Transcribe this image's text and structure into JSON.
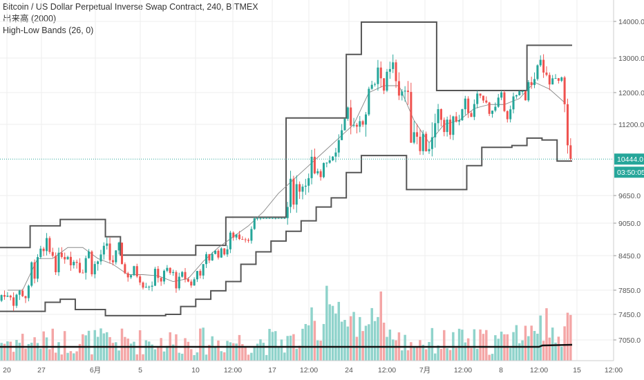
{
  "legend": {
    "symbol": "Bitcoin / US Dollar Perpetual Inverse Swap Contract, 240, BITMEX",
    "volume": "出来高 (2000)",
    "bands": "High-Low Bands (26, 0)"
  },
  "price_tag": {
    "value": "10444.0",
    "countdown": "03:50:05",
    "color": "#26a69a"
  },
  "colors": {
    "up": "#26a69a",
    "down": "#ef5350",
    "vol_up": "#8fd3cb",
    "vol_down": "#f4a6a6",
    "band": "#555555",
    "mid": "#888888",
    "grid": "#eeeeee"
  },
  "chart_data": {
    "type": "candlestick",
    "title": "Bitcoin / US Dollar Perpetual Inverse Swap Contract, 240, BITMEX",
    "y_ticks": [
      "14000.0",
      "13000.0",
      "12000.0",
      "11200.0",
      "9650.0",
      "9050.0",
      "8450.0",
      "7850.0",
      "7450.0",
      "7050.0"
    ],
    "y_tick_values": [
      14000,
      13000,
      12000,
      11200,
      9650,
      9050,
      8450,
      7850,
      7450,
      7050
    ],
    "x_ticks": [
      "20",
      "27",
      "6月",
      "5",
      "10",
      "12:00",
      "17",
      "12:00",
      "24",
      "12:00",
      "7月",
      "12:00",
      "8",
      "12:00",
      "15",
      "12:00"
    ],
    "last_price": 10444.0,
    "upper_band": [
      8600,
      8600,
      9000,
      9000,
      9130,
      9130,
      9130,
      8800,
      8460,
      8460,
      8460,
      8460,
      8460,
      8640,
      8640,
      9180,
      9180,
      9180,
      9180,
      11360,
      11360,
      11360,
      11360,
      13100,
      13980,
      13980,
      13980,
      13980,
      13980,
      12060,
      12060,
      12060,
      12060,
      12060,
      12060,
      13350,
      13350,
      13350
    ],
    "mid_band": [
      7850,
      7850,
      8400,
      8400,
      8600,
      8600,
      8400,
      8300,
      8120,
      8120,
      8100,
      8000,
      8050,
      8350,
      8600,
      8800,
      9000,
      9300,
      9700,
      10000,
      10300,
      10600,
      10900,
      11200,
      12000,
      12200,
      12200,
      11300,
      10800,
      11200,
      11300,
      11600,
      11700,
      11700,
      11850,
      12300,
      12100,
      11750
    ],
    "lower_band": [
      7500,
      7500,
      7500,
      7650,
      7700,
      7530,
      7530,
      7430,
      7430,
      7430,
      7430,
      7450,
      7580,
      7700,
      7840,
      8000,
      8300,
      8520,
      8720,
      8900,
      9100,
      9400,
      9600,
      10150,
      10520,
      10520,
      10520,
      9780,
      9780,
      9780,
      9780,
      10300,
      10700,
      10700,
      10740,
      10900,
      10860,
      10400
    ],
    "series_candles": "OHLC 4h candles, 38 groups"
  },
  "tooltip": ""
}
